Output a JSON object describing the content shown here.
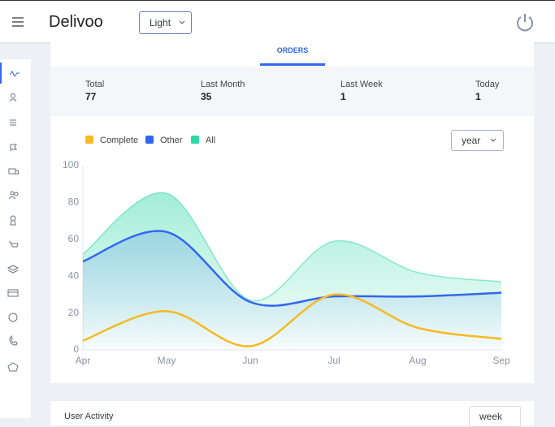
{
  "header": {
    "brand": "Delivoo",
    "theme": "Light"
  },
  "tabs": {
    "active": "ORDERS"
  },
  "stats": [
    {
      "label": "Total",
      "value": 77
    },
    {
      "label": "Last Month",
      "value": 35
    },
    {
      "label": "Last Week",
      "value": 1
    },
    {
      "label": "Today",
      "value": 1
    }
  ],
  "period": "year",
  "chart_data": {
    "type": "area",
    "categories": [
      "Apr",
      "May",
      "Jun",
      "Jul",
      "Aug",
      "Sep"
    ],
    "series": [
      {
        "name": "Complete",
        "color": "#f7b924",
        "fill": false,
        "values": [
          5,
          21,
          2,
          30,
          12,
          6
        ]
      },
      {
        "name": "Other",
        "color": "#3366ee",
        "fill": true,
        "values": [
          48,
          64,
          26,
          29,
          29,
          31
        ]
      },
      {
        "name": "All",
        "color": "#2ed8a3",
        "fill": true,
        "values": [
          52,
          85,
          27,
          59,
          42,
          37
        ]
      }
    ],
    "ylim": [
      0,
      100
    ],
    "yticks": [
      0,
      20,
      40,
      60,
      80,
      100
    ],
    "grid": false
  },
  "activity": {
    "title": "User Activity",
    "period": "week"
  }
}
